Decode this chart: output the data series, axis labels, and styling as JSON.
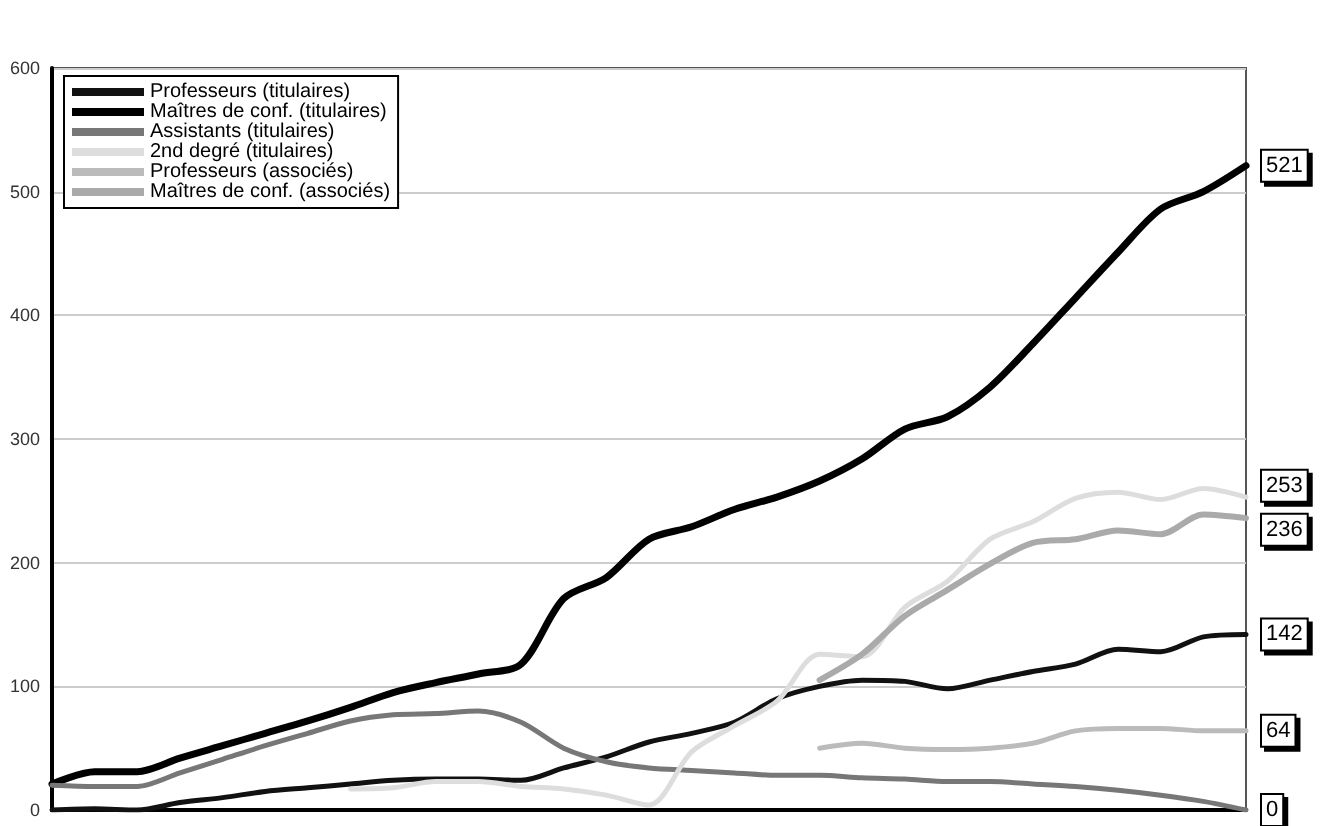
{
  "chart_data": {
    "type": "line",
    "categories": [
      null,
      null,
      null,
      null,
      null,
      null,
      null,
      null,
      null,
      null,
      null,
      null,
      null,
      null,
      null,
      null,
      null,
      null,
      null,
      null,
      null,
      null,
      null,
      null,
      null,
      null,
      null,
      null,
      null
    ],
    "series": [
      {
        "name": "Professeurs (titulaires)",
        "color": "#111111",
        "values": [
          0,
          1,
          0,
          6,
          10,
          15,
          18,
          21,
          24,
          25,
          25,
          24,
          34,
          43,
          55,
          62,
          71,
          90,
          100,
          105,
          104,
          98,
          105,
          112,
          118,
          130,
          128,
          140,
          142
        ],
        "value_labels": [
          null,
          null,
          null,
          null,
          null,
          null,
          null,
          null,
          null,
          null,
          null,
          null,
          null,
          null,
          null,
          null,
          null,
          null,
          null,
          null,
          null,
          null,
          null,
          null,
          null,
          null,
          null,
          null,
          "142"
        ]
      },
      {
        "name": "Maîtres de conf. (titulaires)",
        "color": "#000000",
        "values": [
          21,
          31,
          31,
          42,
          52,
          62,
          72,
          83,
          95,
          103,
          110,
          118,
          171,
          188,
          219,
          229,
          243,
          253,
          266,
          284,
          308,
          318,
          342,
          377,
          414,
          451,
          486,
          500,
          521
        ],
        "value_labels": [
          null,
          null,
          null,
          null,
          null,
          null,
          null,
          null,
          null,
          null,
          null,
          null,
          null,
          null,
          null,
          null,
          null,
          null,
          null,
          null,
          null,
          null,
          null,
          null,
          null,
          null,
          null,
          null,
          "521"
        ]
      },
      {
        "name": "Assistants (titulaires)",
        "color": "#777777",
        "values": [
          20,
          19,
          19,
          30,
          41,
          52,
          62,
          72,
          77,
          78,
          80,
          71,
          50,
          39,
          34,
          32,
          30,
          28,
          28,
          26,
          25,
          23,
          23,
          21,
          19,
          16,
          12,
          7,
          0
        ],
        "value_labels": [
          null,
          null,
          null,
          null,
          null,
          null,
          null,
          null,
          null,
          null,
          null,
          null,
          null,
          null,
          null,
          null,
          null,
          null,
          null,
          null,
          null,
          null,
          null,
          null,
          null,
          null,
          null,
          null,
          "0"
        ]
      },
      {
        "name": "2nd degré (titulaires)",
        "color": "#dddddd",
        "values": [
          null,
          null,
          null,
          null,
          null,
          null,
          null,
          17,
          18,
          23,
          23,
          19,
          17,
          12,
          4,
          47,
          68,
          88,
          126,
          124,
          164,
          185,
          219,
          233,
          252,
          257,
          251,
          260,
          253
        ],
        "value_labels": [
          null,
          null,
          null,
          null,
          null,
          null,
          null,
          null,
          null,
          null,
          null,
          null,
          null,
          null,
          null,
          null,
          null,
          null,
          null,
          null,
          null,
          null,
          null,
          null,
          null,
          null,
          null,
          null,
          "253"
        ]
      },
      {
        "name": "Professeurs (associés)",
        "color": "#bbbbbb",
        "values": [
          null,
          null,
          null,
          null,
          null,
          null,
          null,
          null,
          null,
          null,
          null,
          null,
          null,
          null,
          null,
          null,
          null,
          null,
          50,
          54,
          50,
          49,
          50,
          54,
          64,
          66,
          66,
          64,
          64
        ],
        "value_labels": [
          null,
          null,
          null,
          null,
          null,
          null,
          null,
          null,
          null,
          null,
          null,
          null,
          null,
          null,
          null,
          null,
          null,
          null,
          null,
          null,
          null,
          null,
          null,
          null,
          null,
          null,
          null,
          null,
          "64"
        ]
      },
      {
        "name": "Maîtres de conf. (associés)",
        "color": "#aaaaaa",
        "values": [
          null,
          null,
          null,
          null,
          null,
          null,
          null,
          null,
          null,
          null,
          null,
          null,
          null,
          null,
          null,
          null,
          null,
          null,
          105,
          126,
          157,
          178,
          199,
          216,
          219,
          226,
          223,
          239,
          236
        ],
        "value_labels": [
          null,
          null,
          null,
          null,
          null,
          null,
          null,
          null,
          null,
          null,
          null,
          null,
          null,
          null,
          null,
          null,
          null,
          null,
          null,
          null,
          null,
          null,
          null,
          null,
          null,
          null,
          null,
          null,
          "236"
        ]
      }
    ],
    "ylim": [
      0,
      600
    ],
    "yticks": [
      0,
      100,
      200,
      300,
      400,
      500,
      600
    ],
    "grid": "y",
    "legend": "top left",
    "tick_labels": "y"
  }
}
